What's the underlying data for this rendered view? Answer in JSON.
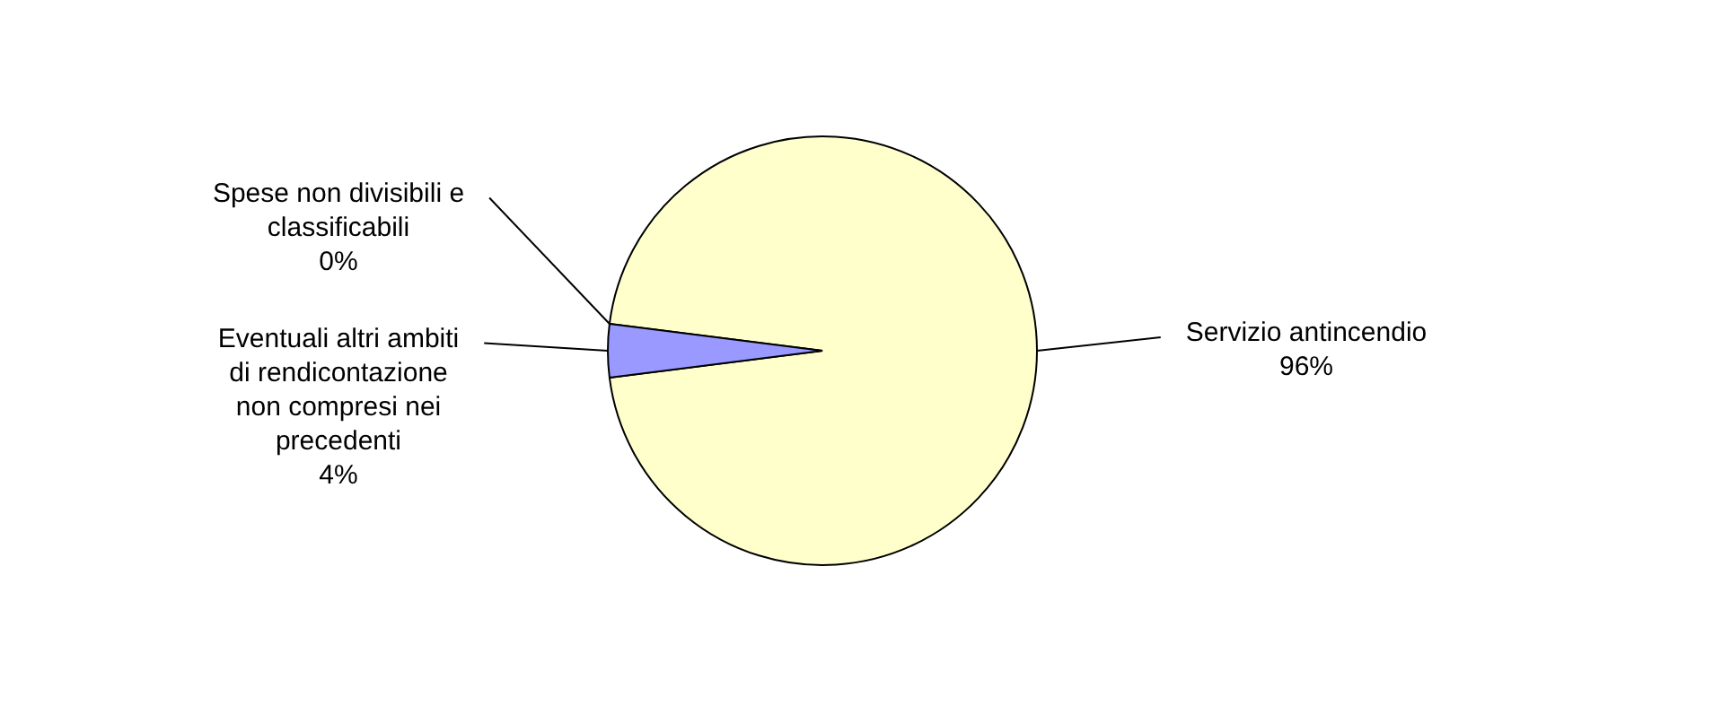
{
  "chart_data": {
    "type": "pie",
    "categories": [
      "Servizio antincendio",
      "Eventuali altri ambiti di rendicontazione non compresi nei precedenti",
      "Spese non divisibili e classificabili"
    ],
    "values": [
      96,
      4,
      0
    ],
    "value_labels": [
      "96%",
      "4%",
      "0%"
    ],
    "colors": [
      "#ffffcc",
      "#9999ff",
      "#333333"
    ],
    "legend": false
  }
}
